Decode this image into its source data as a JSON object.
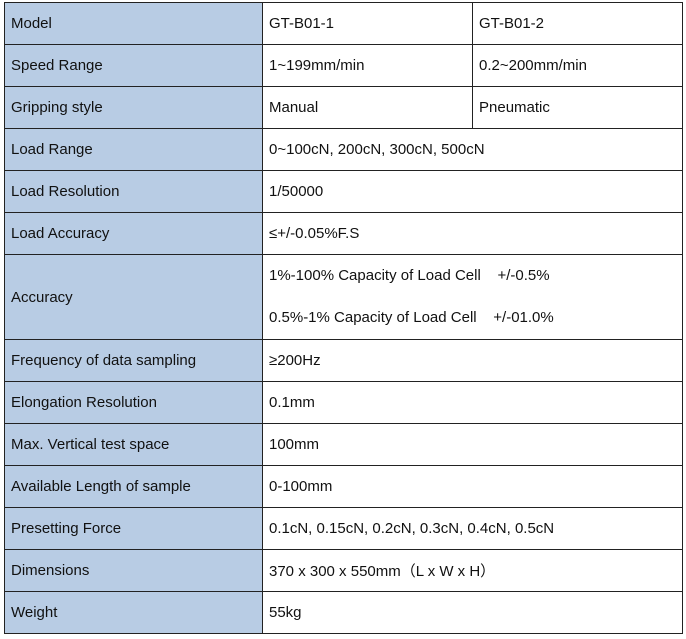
{
  "table": {
    "rows": [
      {
        "label": "Model",
        "cells": [
          "GT-B01-1",
          "GT-B01-2"
        ]
      },
      {
        "label": "Speed Range",
        "cells": [
          "1~199mm/min",
          "0.2~200mm/min"
        ]
      },
      {
        "label": "Gripping style",
        "cells": [
          "Manual",
          "Pneumatic"
        ]
      },
      {
        "label": "Load Range",
        "cells": [
          "0~100cN, 200cN, 300cN, 500cN"
        ]
      },
      {
        "label": "Load Resolution",
        "cells": [
          "1/50000"
        ]
      },
      {
        "label": "Load Accuracy",
        "cells": [
          "≤+/-0.05%F.S"
        ]
      },
      {
        "label": "Accuracy",
        "lines": [
          "1%-100% Capacity of Load Cell    +/-0.5%",
          "0.5%-1% Capacity of Load Cell    +/-01.0%"
        ]
      },
      {
        "label": "Frequency of data sampling",
        "cells": [
          "≥200Hz"
        ]
      },
      {
        "label": "Elongation Resolution",
        "cells": [
          "0.1mm"
        ]
      },
      {
        "label": "Max. Vertical test space",
        "cells": [
          "100mm"
        ]
      },
      {
        "label": "Available Length of sample",
        "cells": [
          "0-100mm"
        ]
      },
      {
        "label": "Presetting Force",
        "cells": [
          "0.1cN, 0.15cN, 0.2cN, 0.3cN, 0.4cN, 0.5cN"
        ]
      },
      {
        "label": "Dimensions",
        "cells": [
          "370 x 300 x 550mm（L x W x H）"
        ]
      },
      {
        "label": "Weight",
        "cells": [
          "55kg"
        ]
      }
    ]
  }
}
